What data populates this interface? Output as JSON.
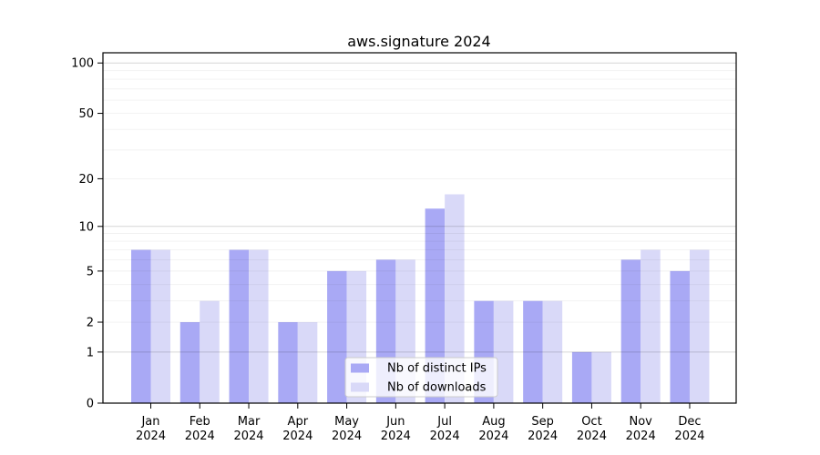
{
  "chart_data": {
    "type": "bar",
    "title": "aws.signature 2024",
    "xlabel": "",
    "ylabel": "",
    "x_year": "2024",
    "categories": [
      "Jan",
      "Feb",
      "Mar",
      "Apr",
      "May",
      "Jun",
      "Jul",
      "Aug",
      "Sep",
      "Oct",
      "Nov",
      "Dec"
    ],
    "series": [
      {
        "name": "Nb of distinct IPs",
        "color": "#a9a9f5",
        "values": [
          7,
          2,
          7,
          2,
          5,
          6,
          13,
          3,
          3,
          1,
          6,
          5
        ]
      },
      {
        "name": "Nb of downloads",
        "color": "#d9d9f8",
        "values": [
          7,
          3,
          7,
          2,
          5,
          6,
          16,
          3,
          3,
          1,
          7,
          7
        ]
      }
    ],
    "y_axis": {
      "scale": "log1p",
      "ticks": [
        0,
        1,
        2,
        5,
        10,
        20,
        50,
        100
      ],
      "max": 115,
      "major_gridlines": [
        1,
        10,
        100
      ],
      "minor_gridlines": [
        2,
        3,
        4,
        5,
        6,
        7,
        8,
        9,
        20,
        30,
        40,
        50,
        60,
        70,
        80,
        90
      ]
    },
    "ylim": [
      0,
      115
    ],
    "grid": true,
    "legend": {
      "location": "lower center"
    }
  },
  "style": {
    "bar_dark": "#a9a9f5",
    "bar_light": "#d9d9f8",
    "grid_major_color": "rgba(0,0,0,0.16)",
    "grid_minor_color": "rgba(0,0,0,0.055)",
    "spine_color": "#000000",
    "text_color": "#000000",
    "background": "#ffffff",
    "legend_bg": "rgba(255,255,255,0.8)",
    "legend_border": "#cccccc"
  }
}
